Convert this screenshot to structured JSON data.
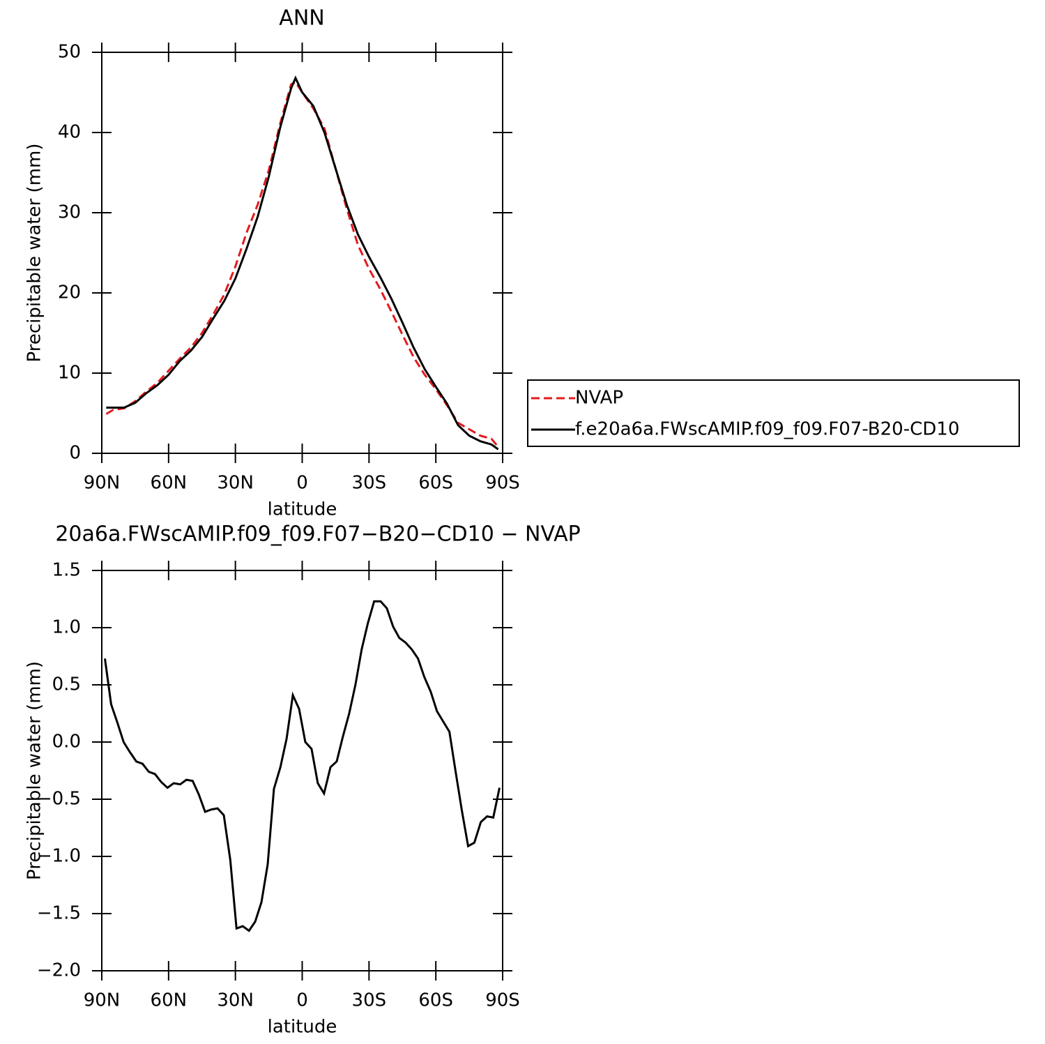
{
  "chart_data": [
    {
      "type": "line",
      "title": "ANN",
      "xlabel": "latitude",
      "ylabel": "Precipitable water (mm)",
      "x": [
        88,
        85,
        80,
        75,
        70,
        65,
        60,
        55,
        50,
        45,
        40,
        35,
        30,
        25,
        20,
        15,
        10,
        5,
        3,
        0,
        -5,
        -10,
        -15,
        -20,
        -25,
        -30,
        -35,
        -40,
        -45,
        -50,
        -55,
        -60,
        -65,
        -70,
        -75,
        -80,
        -85,
        -88
      ],
      "series": [
        {
          "name": "NVAP",
          "color": "#e41a1c",
          "dash": true,
          "values": [
            4.9,
            5.4,
            5.6,
            6.5,
            7.7,
            8.8,
            10.3,
            11.8,
            13.2,
            15.0,
            17.3,
            19.8,
            23.3,
            27.5,
            31,
            35.3,
            41,
            46,
            46.3,
            45,
            43,
            40.5,
            35.5,
            30.5,
            26,
            23,
            20.5,
            17.7,
            14.8,
            12,
            9.8,
            8,
            6.0,
            3.8,
            3.0,
            2.2,
            1.8,
            0.8
          ]
        },
        {
          "name": "f.e20a6a.FWscAMIP.f09_f09.F07-B20-CD10",
          "color": "#000000",
          "dash": false,
          "values": [
            5.7,
            5.7,
            5.7,
            6.3,
            7.5,
            8.5,
            9.8,
            11.5,
            12.8,
            14.5,
            16.8,
            19.0,
            21.8,
            25.5,
            29.5,
            34.5,
            40.5,
            45.5,
            46.8,
            45,
            43.3,
            40,
            35.5,
            31,
            27.3,
            24.5,
            22,
            19.3,
            16.3,
            13.2,
            10.5,
            8.3,
            6.2,
            3.5,
            2.2,
            1.5,
            1.1,
            0.5
          ]
        }
      ],
      "xlim": [
        90,
        -90
      ],
      "xticks": [
        {
          "value": 90,
          "label": "90N"
        },
        {
          "value": 60,
          "label": "60N"
        },
        {
          "value": 30,
          "label": "30N"
        },
        0,
        {
          "value": -30,
          "label": "30S"
        },
        {
          "value": -60,
          "label": "60S"
        },
        {
          "value": -90,
          "label": "90S"
        }
      ],
      "ylim": [
        0,
        50
      ],
      "yticks": [
        0,
        10,
        20,
        30,
        40,
        50
      ],
      "legend": "right"
    },
    {
      "type": "line",
      "title": "20a6a.FWscAMIP.f09_f09.F07−B20−CD10 − NVAP",
      "xlabel": "latitude",
      "ylabel": "Precipitable water (mm)",
      "x": [
        88.6,
        85.8,
        83.0,
        80.2,
        77.3,
        74.5,
        71.7,
        68.9,
        66.1,
        63.3,
        60.5,
        57.7,
        54.8,
        52.0,
        49.2,
        46.4,
        43.6,
        40.8,
        38.0,
        35.2,
        32.3,
        29.5,
        26.7,
        23.9,
        21.1,
        18.3,
        15.5,
        12.7,
        9.8,
        7.0,
        4.2,
        1.4,
        -1.4,
        -4.2,
        -7.0,
        -9.8,
        -12.7,
        -15.5,
        -18.3,
        -21.1,
        -23.9,
        -26.7,
        -29.5,
        -32.3,
        -35.2,
        -38.0,
        -40.8,
        -43.6,
        -46.4,
        -49.2,
        -52.0,
        -54.8,
        -57.7,
        -60.5,
        -63.3,
        -66.1,
        -68.9,
        -71.7,
        -74.5,
        -77.3,
        -80.2,
        -83.0,
        -85.8,
        -88.6
      ],
      "series": [
        {
          "color": "#000000",
          "dash": false,
          "values": [
            0.73,
            0.33,
            0.17,
            0.0,
            -0.09,
            -0.17,
            -0.19,
            -0.26,
            -0.28,
            -0.35,
            -0.4,
            -0.36,
            -0.37,
            -0.33,
            -0.34,
            -0.46,
            -0.61,
            -0.59,
            -0.58,
            -0.64,
            -1.03,
            -1.63,
            -1.61,
            -1.65,
            -1.57,
            -1.4,
            -1.07,
            -0.41,
            -0.22,
            0.03,
            0.41,
            0.29,
            0.0,
            -0.06,
            -0.36,
            -0.45,
            -0.22,
            -0.17,
            0.05,
            0.25,
            0.5,
            0.81,
            1.04,
            1.23,
            1.23,
            1.17,
            1.01,
            0.91,
            0.87,
            0.81,
            0.73,
            0.57,
            0.44,
            0.27,
            0.18,
            0.09,
            -0.26,
            -0.6,
            -0.91,
            -0.88,
            -0.7,
            -0.65,
            -0.66,
            -0.4
          ]
        }
      ],
      "xlim": [
        90,
        -90
      ],
      "xticks": [
        {
          "value": 90,
          "label": "90N"
        },
        {
          "value": 60,
          "label": "60N"
        },
        {
          "value": 30,
          "label": "30N"
        },
        0,
        {
          "value": -30,
          "label": "30S"
        },
        {
          "value": -60,
          "label": "60S"
        },
        {
          "value": -90,
          "label": "90S"
        }
      ],
      "ylim": [
        -2.0,
        1.5
      ],
      "yticks": [
        {
          "value": -2.0,
          "label": "−2.0"
        },
        {
          "value": -1.5,
          "label": "−1.5"
        },
        {
          "value": -1.0,
          "label": "−1.0"
        },
        {
          "value": -0.5,
          "label": "−0.5"
        },
        {
          "value": 0.0,
          "label": "0.0"
        },
        {
          "value": 0.5,
          "label": "0.5"
        },
        {
          "value": 1.0,
          "label": "1.0"
        },
        {
          "value": 1.5,
          "label": "1.5"
        }
      ]
    }
  ]
}
